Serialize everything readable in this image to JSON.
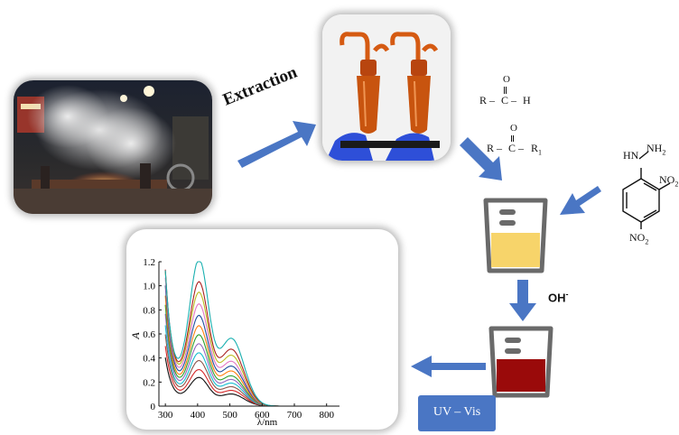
{
  "steps": {
    "extraction_label": "Extraction",
    "hydroxide_label": "OH",
    "hydroxide_charge": "-",
    "uvvis_label": "UV – Vis"
  },
  "reagents": {
    "aldehyde": {
      "o": "O",
      "r": "R",
      "dash1": "–",
      "c": "C",
      "dash2": "–",
      "h": "H"
    },
    "ketone": {
      "o": "O",
      "r": "R",
      "dash1": "–",
      "c": "C",
      "dash2": "–",
      "r1_main": "R",
      "r1_sub": "1"
    },
    "dnph": {
      "hn": "HN",
      "nh2_main": "NH",
      "nh2_sub": "2",
      "no2_top_main": "NO",
      "no2_top_sub": "2",
      "no2_bottom_main": "NO",
      "no2_bottom_sub": "2"
    }
  },
  "colors": {
    "arrow": "#4a76c4",
    "beaker_yellow": "#f7d46a",
    "beaker_red": "#9a0a0a",
    "uvvis_box": "#4a76c4"
  },
  "chart_data": {
    "type": "line",
    "xlabel": "λ/nm",
    "ylabel": "A",
    "xlim": [
      280,
      840
    ],
    "ylim": [
      0,
      1.2
    ],
    "x_ticks": [
      300,
      400,
      500,
      600,
      700,
      800
    ],
    "y_ticks": [
      0,
      0.2,
      0.4,
      0.6,
      0.8,
      1.0,
      1.2
    ],
    "y_tick_labels": [
      "0",
      "0.2",
      "0.4",
      "0.6",
      "0.8",
      "1.0",
      "1.2"
    ],
    "series": [
      {
        "color": "#111111",
        "start": 0.42,
        "valley": 0.15,
        "peak": 0.22,
        "shoulder": 0.1
      },
      {
        "color": "#d62728",
        "start": 0.52,
        "valley": 0.19,
        "peak": 0.28,
        "shoulder": 0.13
      },
      {
        "color": "#8c564b",
        "start": 0.62,
        "valley": 0.23,
        "peak": 0.35,
        "shoulder": 0.16
      },
      {
        "color": "#17becf",
        "start": 0.7,
        "valley": 0.27,
        "peak": 0.41,
        "shoulder": 0.19
      },
      {
        "color": "#9467bd",
        "start": 0.8,
        "valley": 0.31,
        "peak": 0.48,
        "shoulder": 0.22
      },
      {
        "color": "#2ca02c",
        "start": 0.88,
        "valley": 0.35,
        "peak": 0.55,
        "shoulder": 0.25
      },
      {
        "color": "#ff7f0e",
        "start": 0.96,
        "valley": 0.39,
        "peak": 0.62,
        "shoulder": 0.29
      },
      {
        "color": "#1f4e9c",
        "start": 1.05,
        "valley": 0.44,
        "peak": 0.7,
        "shoulder": 0.33
      },
      {
        "color": "#e377c2",
        "start": 1.12,
        "valley": 0.49,
        "peak": 0.79,
        "shoulder": 0.37
      },
      {
        "color": "#bcbd22",
        "start": 1.18,
        "valley": 0.55,
        "peak": 0.88,
        "shoulder": 0.42
      },
      {
        "color": "#aa2222",
        "start": 1.2,
        "valley": 0.61,
        "peak": 0.96,
        "shoulder": 0.47
      },
      {
        "color": "#1ab0b0",
        "start": 1.2,
        "valley": 0.68,
        "peak": 1.14,
        "shoulder": 0.56
      }
    ]
  }
}
